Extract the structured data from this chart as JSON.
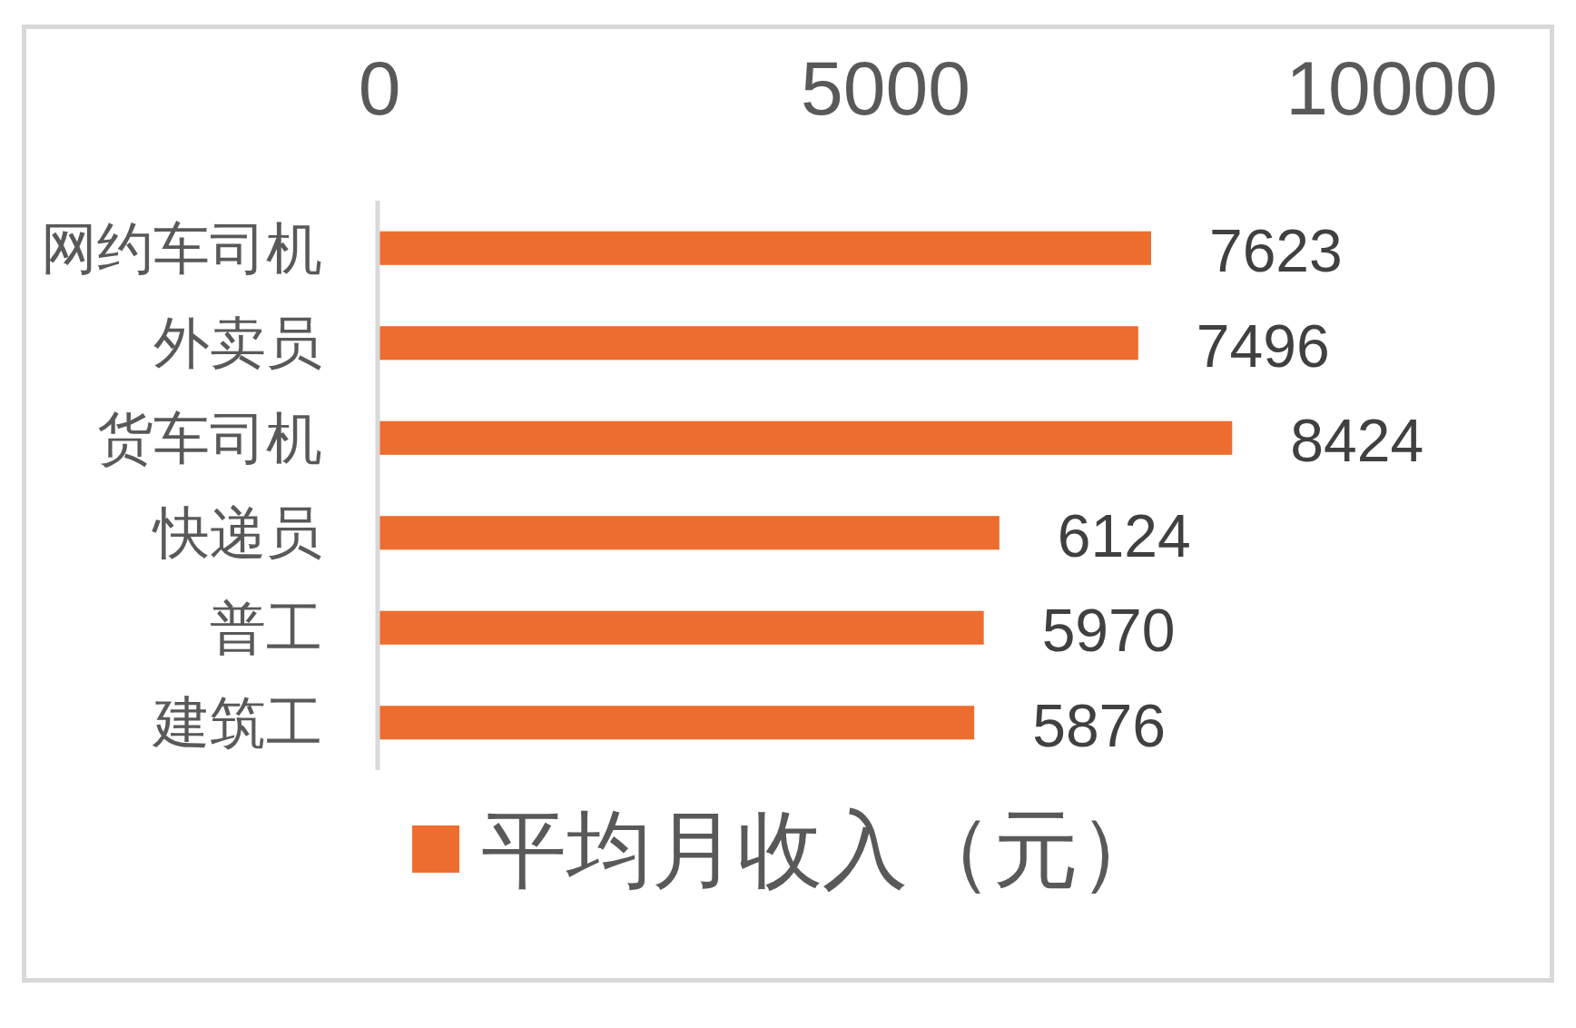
{
  "chart_data": {
    "type": "bar",
    "orientation": "horizontal",
    "categories": [
      "网约车司机",
      "外卖员",
      "货车司机",
      "快递员",
      "普工",
      "建筑工"
    ],
    "series": [
      {
        "name": "平均月收入（元）",
        "color": "#ed6d2e",
        "values": [
          7623,
          7496,
          8424,
          6124,
          5970,
          5876
        ]
      }
    ],
    "xlim": [
      0,
      10000
    ],
    "xticks": [
      0,
      5000,
      10000
    ],
    "data_labels": true,
    "legend": "bottom",
    "grid": false
  }
}
